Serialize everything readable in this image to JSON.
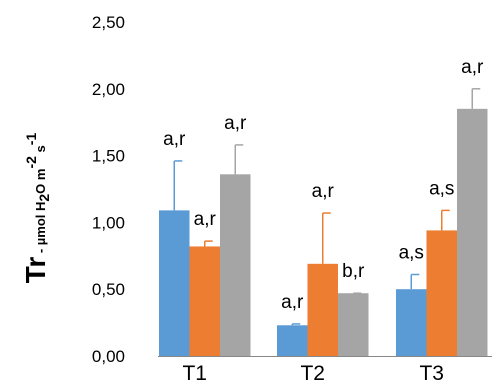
{
  "chart_data": {
    "type": "bar",
    "categories": [
      "T1",
      "T2",
      "T3"
    ],
    "ylabel": {
      "main": "Tr",
      "dash": " - ",
      "unit_a": "µmol H",
      "unit_2": "2",
      "unit_b": "O m",
      "unit_exp1": "-2",
      "unit_c": " s",
      "unit_exp2": "-1"
    },
    "yticks": [
      "0,00",
      "0,50",
      "1,00",
      "1,50",
      "2,00",
      "2,50"
    ],
    "ylim": [
      0,
      2.5
    ],
    "grid": false,
    "legend": "none",
    "series": [
      {
        "color": "#5B9BD5",
        "values": [
          1.09,
          0.23,
          0.5
        ],
        "errors": [
          0.37,
          0.01,
          0.11
        ],
        "labels": [
          "a,r",
          "a,r",
          "a,s"
        ]
      },
      {
        "color": "#ED7D31",
        "values": [
          0.82,
          0.69,
          0.94
        ],
        "errors": [
          0.04,
          0.38,
          0.15
        ],
        "labels": [
          "a,r",
          "a,r",
          "a,s"
        ]
      },
      {
        "color": "#A5A5A5",
        "values": [
          1.36,
          0.47,
          1.85
        ],
        "errors": [
          0.22,
          0.0,
          0.15
        ],
        "labels": [
          "a,r",
          "b,r",
          "a,r"
        ]
      }
    ]
  }
}
